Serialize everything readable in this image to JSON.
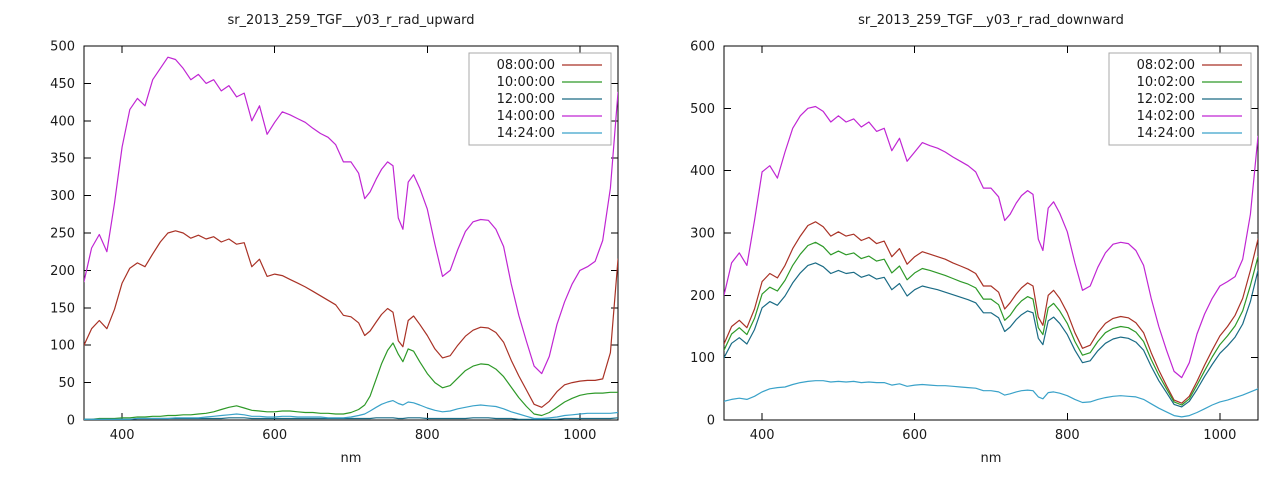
{
  "page": {
    "background": "#ffffff"
  },
  "style": {
    "axis_color": "#000000",
    "text_color": "#1a1a1a",
    "legend_border": "#a8a8a8",
    "plot_background": "#ffffff"
  },
  "chart_data": [
    {
      "type": "line",
      "title": "sr_2013_259_TGF__y03_r_rad_upward",
      "xlabel": "nm",
      "ylabel": "",
      "xlim": [
        350,
        1050
      ],
      "ylim": [
        0,
        500
      ],
      "xticks": [
        400,
        600,
        800,
        1000
      ],
      "yticks": [
        0,
        50,
        100,
        150,
        200,
        250,
        300,
        350,
        400,
        450,
        500
      ],
      "grid": false,
      "legend_position": "top-right",
      "x": [
        350,
        360,
        370,
        380,
        390,
        400,
        410,
        420,
        430,
        440,
        450,
        460,
        470,
        480,
        490,
        500,
        510,
        520,
        530,
        540,
        550,
        560,
        570,
        580,
        590,
        600,
        610,
        620,
        630,
        640,
        650,
        660,
        670,
        680,
        690,
        700,
        710,
        718,
        725,
        733,
        740,
        748,
        755,
        762,
        768,
        775,
        782,
        790,
        800,
        810,
        820,
        830,
        840,
        850,
        860,
        870,
        880,
        890,
        900,
        910,
        920,
        930,
        940,
        950,
        960,
        970,
        980,
        990,
        1000,
        1010,
        1020,
        1030,
        1040,
        1050
      ],
      "series": [
        {
          "name": "08:00:00",
          "color": "#a93226",
          "values": [
            100,
            122,
            133,
            122,
            148,
            183,
            203,
            210,
            205,
            222,
            238,
            250,
            253,
            250,
            243,
            247,
            242,
            245,
            238,
            242,
            235,
            237,
            205,
            215,
            192,
            195,
            193,
            188,
            183,
            178,
            172,
            166,
            160,
            154,
            140,
            138,
            130,
            113,
            119,
            131,
            141,
            149,
            144,
            106,
            98,
            133,
            139,
            128,
            113,
            95,
            83,
            86,
            100,
            112,
            120,
            124,
            123,
            117,
            104,
            80,
            59,
            40,
            21,
            17,
            25,
            38,
            47,
            50,
            52,
            53,
            53,
            55,
            90,
            215
          ]
        },
        {
          "name": "10:00:00",
          "color": "#2e9928",
          "values": [
            1,
            1,
            2,
            2,
            2,
            3,
            3,
            4,
            4,
            5,
            5,
            6,
            6,
            7,
            7,
            8,
            9,
            11,
            14,
            17,
            19,
            16,
            13,
            12,
            11,
            11,
            12,
            12,
            11,
            10,
            10,
            9,
            9,
            8,
            8,
            10,
            14,
            20,
            32,
            55,
            75,
            93,
            103,
            88,
            78,
            95,
            92,
            78,
            62,
            50,
            43,
            46,
            56,
            66,
            72,
            75,
            74,
            68,
            58,
            44,
            30,
            18,
            8,
            6,
            10,
            17,
            24,
            29,
            33,
            35,
            36,
            36,
            37,
            37
          ]
        },
        {
          "name": "12:00:00",
          "color": "#1a6b85",
          "values": [
            1,
            1,
            1,
            1,
            1,
            1,
            1,
            2,
            2,
            2,
            2,
            2,
            2,
            2,
            2,
            2,
            2,
            2,
            2,
            3,
            3,
            3,
            2,
            2,
            2,
            2,
            2,
            2,
            2,
            2,
            2,
            2,
            2,
            2,
            2,
            2,
            2,
            2,
            2,
            3,
            3,
            3,
            3,
            2,
            2,
            3,
            3,
            3,
            2,
            2,
            2,
            2,
            2,
            2,
            3,
            3,
            3,
            2,
            2,
            2,
            1,
            1,
            1,
            1,
            1,
            1,
            2,
            2,
            2,
            2,
            2,
            2,
            2,
            3
          ]
        },
        {
          "name": "14:00:00",
          "color": "#c026d3",
          "values": [
            185,
            230,
            248,
            225,
            290,
            365,
            415,
            430,
            420,
            455,
            470,
            485,
            482,
            470,
            455,
            462,
            450,
            455,
            440,
            447,
            432,
            437,
            400,
            420,
            382,
            398,
            412,
            408,
            403,
            398,
            390,
            383,
            378,
            368,
            345,
            345,
            330,
            296,
            305,
            322,
            335,
            345,
            340,
            270,
            255,
            318,
            328,
            310,
            282,
            235,
            192,
            200,
            228,
            252,
            265,
            268,
            267,
            255,
            232,
            182,
            140,
            105,
            72,
            62,
            85,
            128,
            158,
            182,
            200,
            205,
            212,
            240,
            310,
            438
          ]
        },
        {
          "name": "14:24:00",
          "color": "#3aa2c9",
          "values": [
            1,
            1,
            1,
            1,
            1,
            1,
            1,
            2,
            2,
            2,
            2,
            2,
            3,
            3,
            3,
            3,
            4,
            5,
            6,
            7,
            8,
            7,
            5,
            5,
            4,
            4,
            5,
            5,
            4,
            4,
            4,
            4,
            3,
            3,
            3,
            4,
            6,
            8,
            12,
            17,
            21,
            24,
            26,
            22,
            20,
            24,
            23,
            20,
            16,
            13,
            11,
            12,
            15,
            17,
            19,
            20,
            19,
            18,
            15,
            11,
            8,
            5,
            2,
            2,
            3,
            4,
            6,
            7,
            8,
            9,
            9,
            9,
            9,
            10
          ]
        }
      ]
    },
    {
      "type": "line",
      "title": "sr_2013_259_TGF__y03_r_rad_downward",
      "xlabel": "nm",
      "ylabel": "",
      "xlim": [
        350,
        1050
      ],
      "ylim": [
        0,
        600
      ],
      "xticks": [
        400,
        600,
        800,
        1000
      ],
      "yticks": [
        0,
        100,
        200,
        300,
        400,
        500,
        600
      ],
      "grid": false,
      "legend_position": "top-right",
      "x": [
        350,
        360,
        370,
        380,
        390,
        400,
        410,
        420,
        430,
        440,
        450,
        460,
        470,
        480,
        490,
        500,
        510,
        520,
        530,
        540,
        550,
        560,
        570,
        580,
        590,
        600,
        610,
        620,
        630,
        640,
        650,
        660,
        670,
        680,
        690,
        700,
        710,
        718,
        725,
        733,
        740,
        748,
        755,
        762,
        768,
        775,
        782,
        790,
        800,
        810,
        820,
        830,
        840,
        850,
        860,
        870,
        880,
        890,
        900,
        910,
        920,
        930,
        940,
        950,
        960,
        970,
        980,
        990,
        1000,
        1010,
        1020,
        1030,
        1040,
        1050
      ],
      "series": [
        {
          "name": "08:02:00",
          "color": "#a93226",
          "values": [
            122,
            150,
            160,
            148,
            178,
            222,
            235,
            228,
            248,
            275,
            295,
            312,
            318,
            310,
            295,
            302,
            295,
            298,
            288,
            293,
            283,
            287,
            262,
            275,
            250,
            262,
            270,
            266,
            262,
            258,
            252,
            247,
            242,
            235,
            215,
            215,
            205,
            178,
            188,
            202,
            212,
            220,
            215,
            165,
            152,
            200,
            208,
            195,
            172,
            140,
            115,
            120,
            140,
            155,
            163,
            166,
            164,
            156,
            140,
            108,
            80,
            55,
            32,
            27,
            38,
            62,
            88,
            112,
            135,
            150,
            168,
            195,
            240,
            290
          ]
        },
        {
          "name": "10:02:00",
          "color": "#2e9928",
          "values": [
            112,
            138,
            148,
            137,
            163,
            202,
            213,
            207,
            224,
            248,
            266,
            280,
            285,
            278,
            265,
            271,
            265,
            268,
            259,
            263,
            255,
            258,
            236,
            247,
            225,
            236,
            243,
            240,
            236,
            232,
            227,
            222,
            218,
            212,
            194,
            194,
            185,
            160,
            168,
            182,
            191,
            198,
            194,
            148,
            137,
            180,
            187,
            175,
            155,
            126,
            104,
            108,
            126,
            140,
            147,
            150,
            148,
            141,
            126,
            97,
            72,
            50,
            29,
            24,
            34,
            56,
            79,
            101,
            121,
            135,
            151,
            175,
            216,
            262
          ]
        },
        {
          "name": "12:02:00",
          "color": "#1a6b85",
          "values": [
            100,
            123,
            132,
            122,
            145,
            180,
            190,
            184,
            199,
            220,
            236,
            248,
            252,
            246,
            235,
            240,
            235,
            237,
            229,
            233,
            226,
            229,
            209,
            219,
            199,
            209,
            215,
            212,
            209,
            205,
            201,
            197,
            193,
            188,
            172,
            172,
            164,
            142,
            149,
            161,
            169,
            175,
            172,
            131,
            121,
            159,
            165,
            155,
            137,
            112,
            92,
            95,
            111,
            123,
            130,
            133,
            131,
            125,
            112,
            86,
            63,
            44,
            25,
            21,
            30,
            49,
            70,
            89,
            107,
            119,
            133,
            154,
            190,
            240
          ]
        },
        {
          "name": "14:02:00",
          "color": "#c026d3",
          "values": [
            200,
            252,
            268,
            248,
            320,
            398,
            408,
            388,
            430,
            468,
            488,
            500,
            503,
            495,
            478,
            488,
            478,
            483,
            470,
            478,
            463,
            468,
            432,
            452,
            415,
            430,
            445,
            440,
            436,
            430,
            422,
            415,
            408,
            398,
            372,
            372,
            358,
            320,
            330,
            348,
            360,
            368,
            362,
            290,
            272,
            340,
            350,
            332,
            302,
            252,
            208,
            215,
            245,
            268,
            282,
            285,
            283,
            272,
            248,
            195,
            150,
            112,
            78,
            68,
            92,
            138,
            170,
            195,
            215,
            222,
            230,
            258,
            330,
            455
          ]
        },
        {
          "name": "14:24:00",
          "color": "#3aa2c9",
          "values": [
            30,
            33,
            35,
            33,
            38,
            45,
            50,
            52,
            53,
            57,
            60,
            62,
            63,
            63,
            61,
            62,
            61,
            62,
            60,
            61,
            60,
            60,
            56,
            58,
            54,
            56,
            57,
            56,
            55,
            55,
            54,
            53,
            52,
            51,
            47,
            47,
            45,
            40,
            42,
            45,
            47,
            48,
            47,
            37,
            34,
            44,
            45,
            43,
            39,
            33,
            28,
            29,
            33,
            36,
            38,
            39,
            38,
            37,
            33,
            26,
            19,
            13,
            7,
            5,
            7,
            12,
            18,
            24,
            29,
            32,
            36,
            40,
            45,
            50
          ]
        }
      ]
    }
  ]
}
